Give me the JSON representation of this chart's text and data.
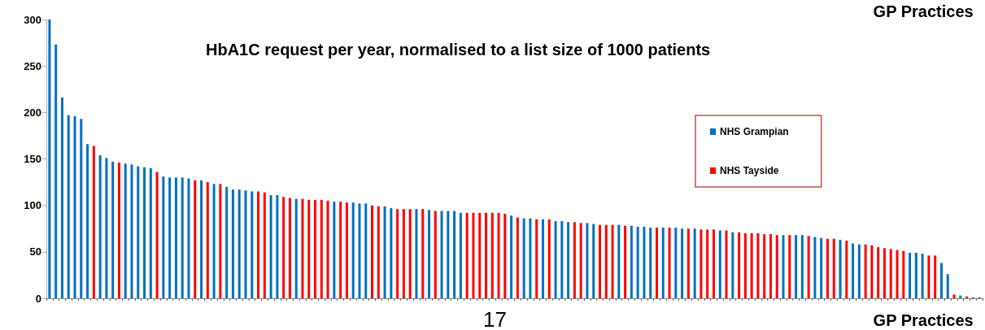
{
  "chart_data": {
    "type": "bar",
    "title": "HbA1C request per year, normalised to a list size of 1000 patients",
    "xlabel": "GP Practices",
    "annotations": [
      "GP Practices",
      "17"
    ],
    "categories": [
      null,
      null,
      null,
      null,
      null,
      null,
      null,
      null,
      null,
      null,
      null,
      null,
      null,
      null,
      null,
      null,
      null,
      null,
      null,
      null,
      null,
      null,
      null,
      null,
      null,
      null,
      null,
      null,
      null,
      null,
      null,
      null,
      null,
      null,
      null,
      null,
      null,
      null,
      null,
      null,
      null,
      null,
      null,
      null,
      null,
      null,
      null,
      null,
      null,
      null,
      null,
      null,
      null,
      null,
      null,
      null,
      null,
      null,
      null,
      null,
      null,
      null,
      null,
      null,
      null,
      null,
      null,
      null,
      null,
      null,
      null,
      null,
      null,
      null,
      null,
      null,
      null,
      null,
      null,
      null,
      null,
      null,
      null,
      null,
      null,
      null,
      null,
      null,
      null,
      null,
      null,
      null,
      null,
      null,
      null,
      null,
      null,
      null,
      null,
      null,
      null,
      null,
      null,
      null,
      null,
      null,
      null,
      null,
      null,
      null,
      null,
      null,
      null,
      null,
      null,
      null,
      null,
      null,
      null,
      null,
      null,
      null,
      null,
      null,
      null,
      null,
      null,
      null,
      null,
      null,
      null,
      null,
      null,
      null,
      null,
      null,
      null,
      null,
      null,
      null,
      null,
      null,
      null,
      null,
      null,
      null,
      null,
      null
    ],
    "series": [
      {
        "name": "NHS Grampian",
        "color": "#0070c0",
        "values": [
          300,
          273,
          216,
          197,
          196,
          193,
          166,
          null,
          154,
          151,
          147,
          null,
          145,
          144,
          142,
          141,
          140,
          null,
          131,
          130,
          130,
          130,
          129,
          null,
          127,
          null,
          123,
          null,
          120,
          117,
          117,
          116,
          115,
          null,
          null,
          111,
          111,
          null,
          null,
          107,
          null,
          null,
          null,
          null,
          null,
          104,
          null,
          null,
          103,
          102,
          102,
          null,
          null,
          99,
          97,
          null,
          null,
          null,
          96,
          null,
          95,
          null,
          94,
          94,
          94,
          92,
          null,
          null,
          null,
          null,
          null,
          null,
          null,
          89,
          null,
          86,
          86,
          null,
          85,
          null,
          83,
          83,
          82,
          null,
          null,
          81,
          80,
          null,
          null,
          null,
          79,
          null,
          78,
          77,
          77,
          76,
          null,
          76,
          null,
          76,
          75,
          null,
          75,
          null,
          null,
          null,
          73,
          null,
          71,
          null,
          null,
          null,
          null,
          null,
          null,
          null,
          68,
          null,
          68,
          68,
          null,
          66,
          65,
          null,
          null,
          63,
          null,
          59,
          58,
          null,
          null,
          null,
          null,
          null,
          null,
          null,
          49,
          49,
          48,
          null,
          null,
          38,
          26,
          null,
          3,
          null,
          null,
          null
        ]
      },
      {
        "name": "NHS Tayside",
        "color": "#ff0000",
        "values": [
          null,
          null,
          null,
          null,
          null,
          null,
          null,
          164,
          null,
          null,
          null,
          146,
          null,
          null,
          null,
          null,
          null,
          136,
          null,
          null,
          null,
          null,
          null,
          127,
          null,
          125,
          null,
          123,
          null,
          null,
          null,
          null,
          null,
          115,
          114,
          null,
          null,
          109,
          108,
          null,
          107,
          106,
          106,
          106,
          105,
          null,
          104,
          103,
          null,
          null,
          null,
          100,
          99,
          null,
          null,
          96,
          96,
          96,
          null,
          96,
          null,
          94,
          null,
          null,
          null,
          null,
          92,
          92,
          92,
          92,
          92,
          92,
          91,
          null,
          87,
          null,
          null,
          85,
          null,
          85,
          null,
          null,
          null,
          82,
          81,
          null,
          null,
          79,
          79,
          79,
          null,
          78,
          null,
          null,
          null,
          null,
          76,
          null,
          76,
          null,
          null,
          75,
          null,
          74,
          74,
          74,
          null,
          73,
          null,
          71,
          70,
          70,
          70,
          69,
          69,
          68,
          null,
          68,
          null,
          null,
          67,
          null,
          null,
          64,
          64,
          null,
          62,
          null,
          null,
          58,
          57,
          55,
          54,
          53,
          52,
          51,
          null,
          null,
          null,
          46,
          46,
          null,
          null,
          4,
          null,
          2,
          1,
          1
        ]
      }
    ],
    "ylim": [
      0,
      300
    ],
    "yticks": [
      0,
      50,
      100,
      150,
      200,
      250,
      300
    ],
    "grid": false,
    "legend": "right",
    "tick_labels": "y"
  }
}
